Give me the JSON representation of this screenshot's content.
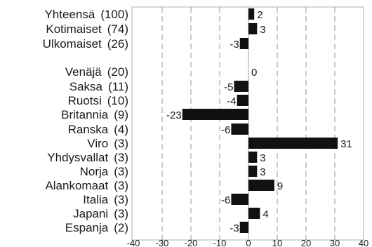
{
  "chart_data": {
    "type": "bar",
    "orientation": "horizontal",
    "title": "",
    "xlabel": "",
    "ylabel": "",
    "xlim": [
      -40,
      40
    ],
    "x_ticks": [
      -40,
      -30,
      -20,
      -10,
      0,
      10,
      20,
      30,
      40
    ],
    "grid": "vertical dashed",
    "bar_color": "#111111",
    "categories": [
      {
        "name": "Yhteensä",
        "count": "(100)",
        "value": 2,
        "value_label": "2"
      },
      {
        "name": "Kotimaiset",
        "count": "(74)",
        "value": 3,
        "value_label": "3"
      },
      {
        "name": "Ulkomaiset",
        "count": "(26)",
        "value": -3,
        "value_label": "-3"
      },
      {
        "name": "Venäjä",
        "count": "(20)",
        "value": 0,
        "value_label": "0"
      },
      {
        "name": "Saksa",
        "count": "(11)",
        "value": -5,
        "value_label": "-5"
      },
      {
        "name": "Ruotsi",
        "count": "(10)",
        "value": -4,
        "value_label": "-4"
      },
      {
        "name": "Britannia",
        "count": "(9)",
        "value": -23,
        "value_label": "-23"
      },
      {
        "name": "Ranska",
        "count": "(4)",
        "value": -6,
        "value_label": "-6"
      },
      {
        "name": "Viro",
        "count": "(3)",
        "value": 31,
        "value_label": "31"
      },
      {
        "name": "Yhdysvallat",
        "count": "(3)",
        "value": 3,
        "value_label": "3"
      },
      {
        "name": "Norja",
        "count": "(3)",
        "value": 3,
        "value_label": "3"
      },
      {
        "name": "Alankomaat",
        "count": "(3)",
        "value": 9,
        "value_label": "9"
      },
      {
        "name": "Italia",
        "count": "(3)",
        "value": -6,
        "value_label": "-6"
      },
      {
        "name": "Japani",
        "count": "(3)",
        "value": 4,
        "value_label": "4"
      },
      {
        "name": "Espanja",
        "count": "(2)",
        "value": -3,
        "value_label": "-3"
      }
    ]
  }
}
